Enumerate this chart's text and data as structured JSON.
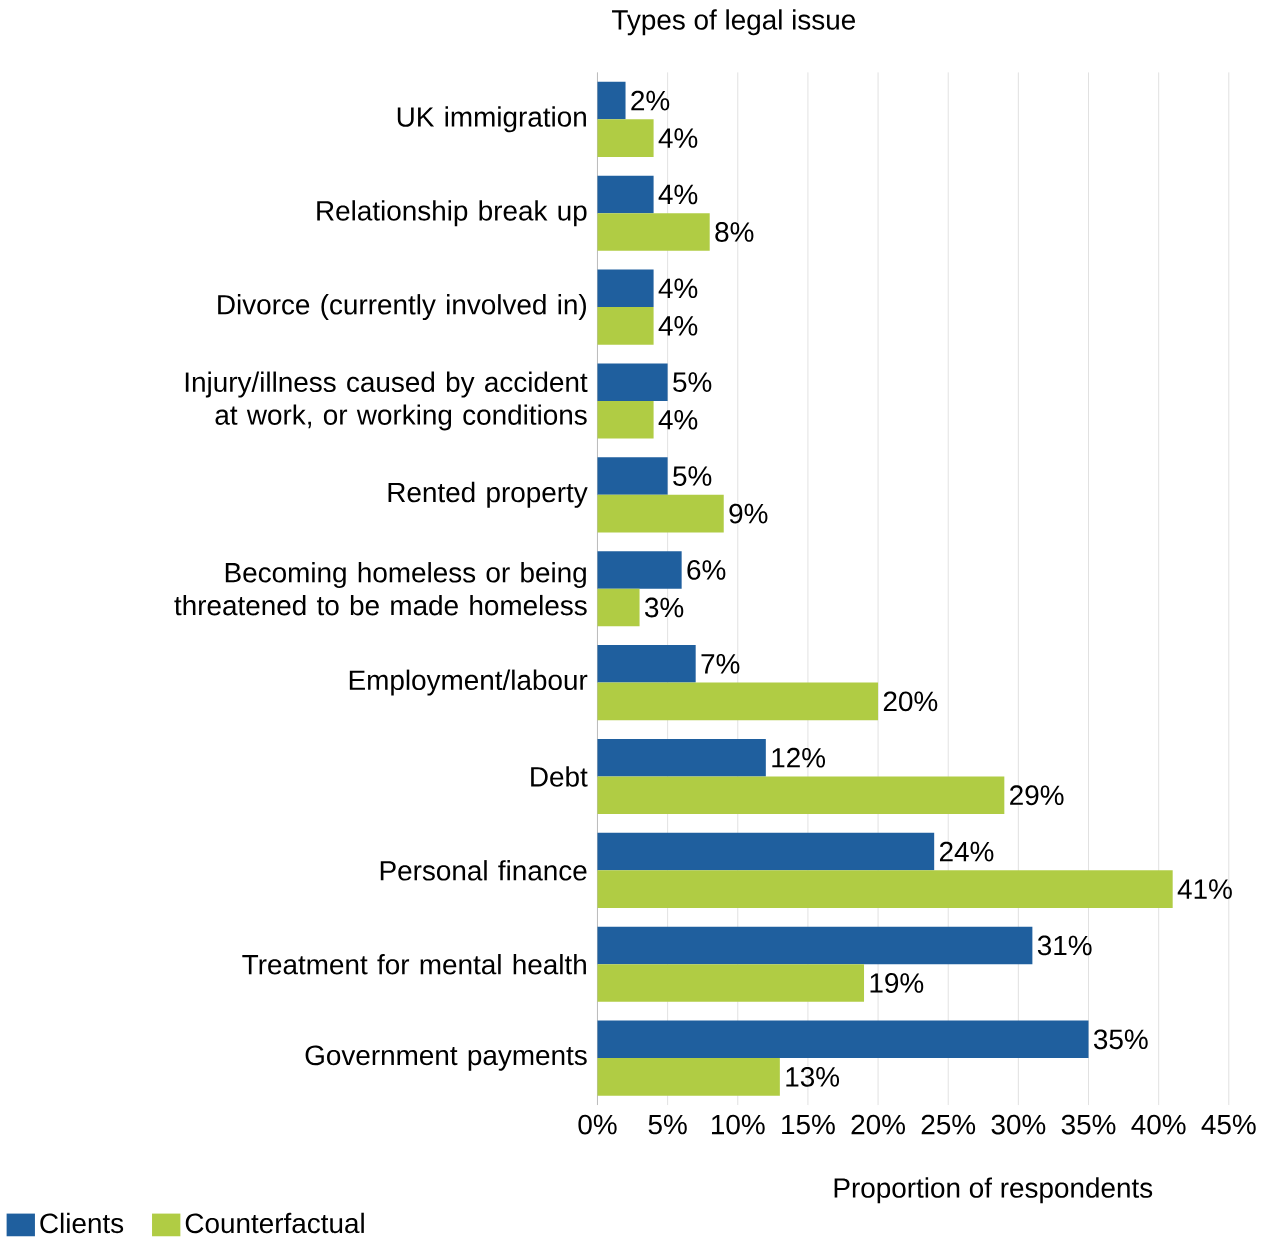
{
  "chart_data": {
    "type": "bar",
    "orientation": "horizontal",
    "title": "Types of legal issue",
    "xlabel": "Proportion of respondents",
    "categories": [
      "UK immigration",
      "Relationship break up",
      "Divorce (currently involved in)",
      "Injury/illness caused by accident at work, or working conditions",
      "Rented property",
      "Becoming homeless or being threatened to be made homeless",
      "Employment/labour",
      "Debt",
      "Personal finance",
      "Treatment for mental health",
      "Government payments"
    ],
    "series": [
      {
        "name": "Clients",
        "color": "#1f5f9e",
        "values": [
          2,
          4,
          4,
          5,
          5,
          6,
          7,
          12,
          24,
          31,
          35
        ],
        "value_labels": [
          "2%",
          "4%",
          "4%",
          "5%",
          "5%",
          "6%",
          "7%",
          "12%",
          "24%",
          "31%",
          "35%"
        ]
      },
      {
        "name": "Counterfactual",
        "color": "#b0cc44",
        "values": [
          4,
          8,
          4,
          4,
          9,
          3,
          20,
          29,
          41,
          19,
          13
        ],
        "value_labels": [
          "4%",
          "8%",
          "4%",
          "4%",
          "9%",
          "3%",
          "20%",
          "29%",
          "41%",
          "19%",
          "13%"
        ]
      }
    ],
    "xlim": [
      0,
      45
    ],
    "xticks": [
      {
        "value": 0,
        "label": "0%"
      },
      {
        "value": 5,
        "label": "5%"
      },
      {
        "value": 10,
        "label": "10%"
      },
      {
        "value": 15,
        "label": "15%"
      },
      {
        "value": 20,
        "label": "20%"
      },
      {
        "value": 25,
        "label": "25%"
      },
      {
        "value": 30,
        "label": "30%"
      },
      {
        "value": 35,
        "label": "35%"
      },
      {
        "value": 40,
        "label": "40%"
      },
      {
        "value": 45,
        "label": "45%"
      }
    ],
    "grid": "x",
    "legend": "bottom left"
  }
}
